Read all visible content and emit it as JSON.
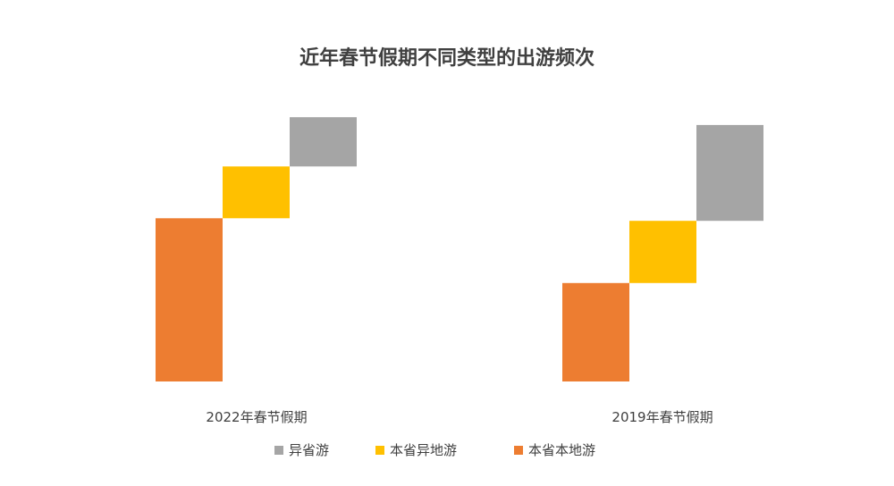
{
  "chart_data": {
    "type": "bar",
    "subtype": "stacked-waterfall",
    "title": "近年春节假期不同类型的出游频次",
    "categories": [
      "2022年春节假期",
      "2019年春节假期"
    ],
    "series": [
      {
        "name": "本省本地游",
        "color": "#ED7D31",
        "values": [
          63,
          38
        ]
      },
      {
        "name": "本省异地游",
        "color": "#FFC000",
        "values": [
          20,
          24
        ]
      },
      {
        "name": "异省游",
        "color": "#A5A5A5",
        "values": [
          19,
          37
        ]
      }
    ],
    "legend_order": [
      "异省游",
      "本省异地游",
      "本省本地游"
    ],
    "legend_position": "bottom",
    "grid": false,
    "axes_visible": false
  }
}
